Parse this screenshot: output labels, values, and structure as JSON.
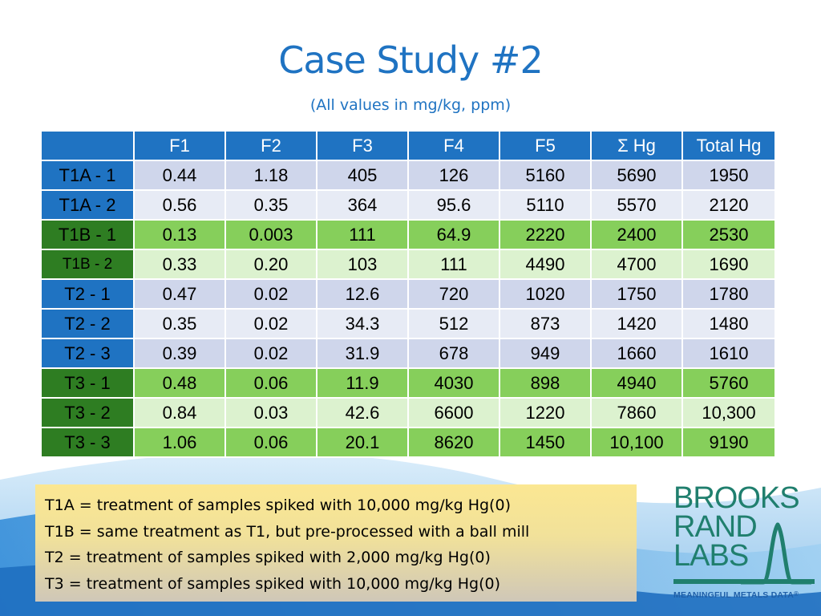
{
  "title": "Case Study #2",
  "subtitle": "(All values in mg/kg, ppm)",
  "table": {
    "headers": [
      "F1",
      "F2",
      "F3",
      "F4",
      "F5",
      "Σ Hg",
      "Total Hg"
    ],
    "rows": [
      {
        "label": "T1A - 1",
        "values": [
          "0.44",
          "1.18",
          "405",
          "126",
          "5160",
          "5690",
          "1950"
        ]
      },
      {
        "label": "T1A - 2",
        "values": [
          "0.56",
          "0.35",
          "364",
          "95.6",
          "5110",
          "5570",
          "2120"
        ]
      },
      {
        "label": "T1B - 1",
        "values": [
          "0.13",
          "0.003",
          "111",
          "64.9",
          "2220",
          "2400",
          "2530"
        ]
      },
      {
        "label": "T1B - 2",
        "values": [
          "0.33",
          "0.20",
          "103",
          "111",
          "4490",
          "4700",
          "1690"
        ]
      },
      {
        "label": "T2 - 1",
        "values": [
          "0.47",
          "0.02",
          "12.6",
          "720",
          "1020",
          "1750",
          "1780"
        ]
      },
      {
        "label": "T2 - 2",
        "values": [
          "0.35",
          "0.02",
          "34.3",
          "512",
          "873",
          "1420",
          "1480"
        ]
      },
      {
        "label": "T2 - 3",
        "values": [
          "0.39",
          "0.02",
          "31.9",
          "678",
          "949",
          "1660",
          "1610"
        ]
      },
      {
        "label": "T3 - 1",
        "values": [
          "0.48",
          "0.06",
          "11.9",
          "4030",
          "898",
          "4940",
          "5760"
        ]
      },
      {
        "label": "T3 - 2",
        "values": [
          "0.84",
          "0.03",
          "42.6",
          "6600",
          "1220",
          "7860",
          "10,300"
        ]
      },
      {
        "label": "T3 - 3",
        "values": [
          "1.06",
          "0.06",
          "20.1",
          "8620",
          "1450",
          "10,100",
          "9190"
        ]
      }
    ]
  },
  "notes": [
    "T1A = treatment of samples spiked with 10,000 mg/kg Hg(0)",
    "T1B = same treatment as T1, but pre-processed with a ball mill",
    "T2 = treatment of samples spiked with 2,000 mg/kg Hg(0)",
    "T3 = treatment of samples spiked with 10,000 mg/kg Hg(0)"
  ],
  "logo": {
    "line1": "BROOKS",
    "line2": "RAND",
    "line3": "LABS",
    "tagline": "MEANINGFUL METALS DATA",
    "registered": "®"
  },
  "colors": {
    "title": "#1f73c2",
    "header": "#1f73c2",
    "row_label_green": "#2e7d22",
    "logo_green": "#207f6e",
    "logo_blue": "#1f5fa8"
  }
}
